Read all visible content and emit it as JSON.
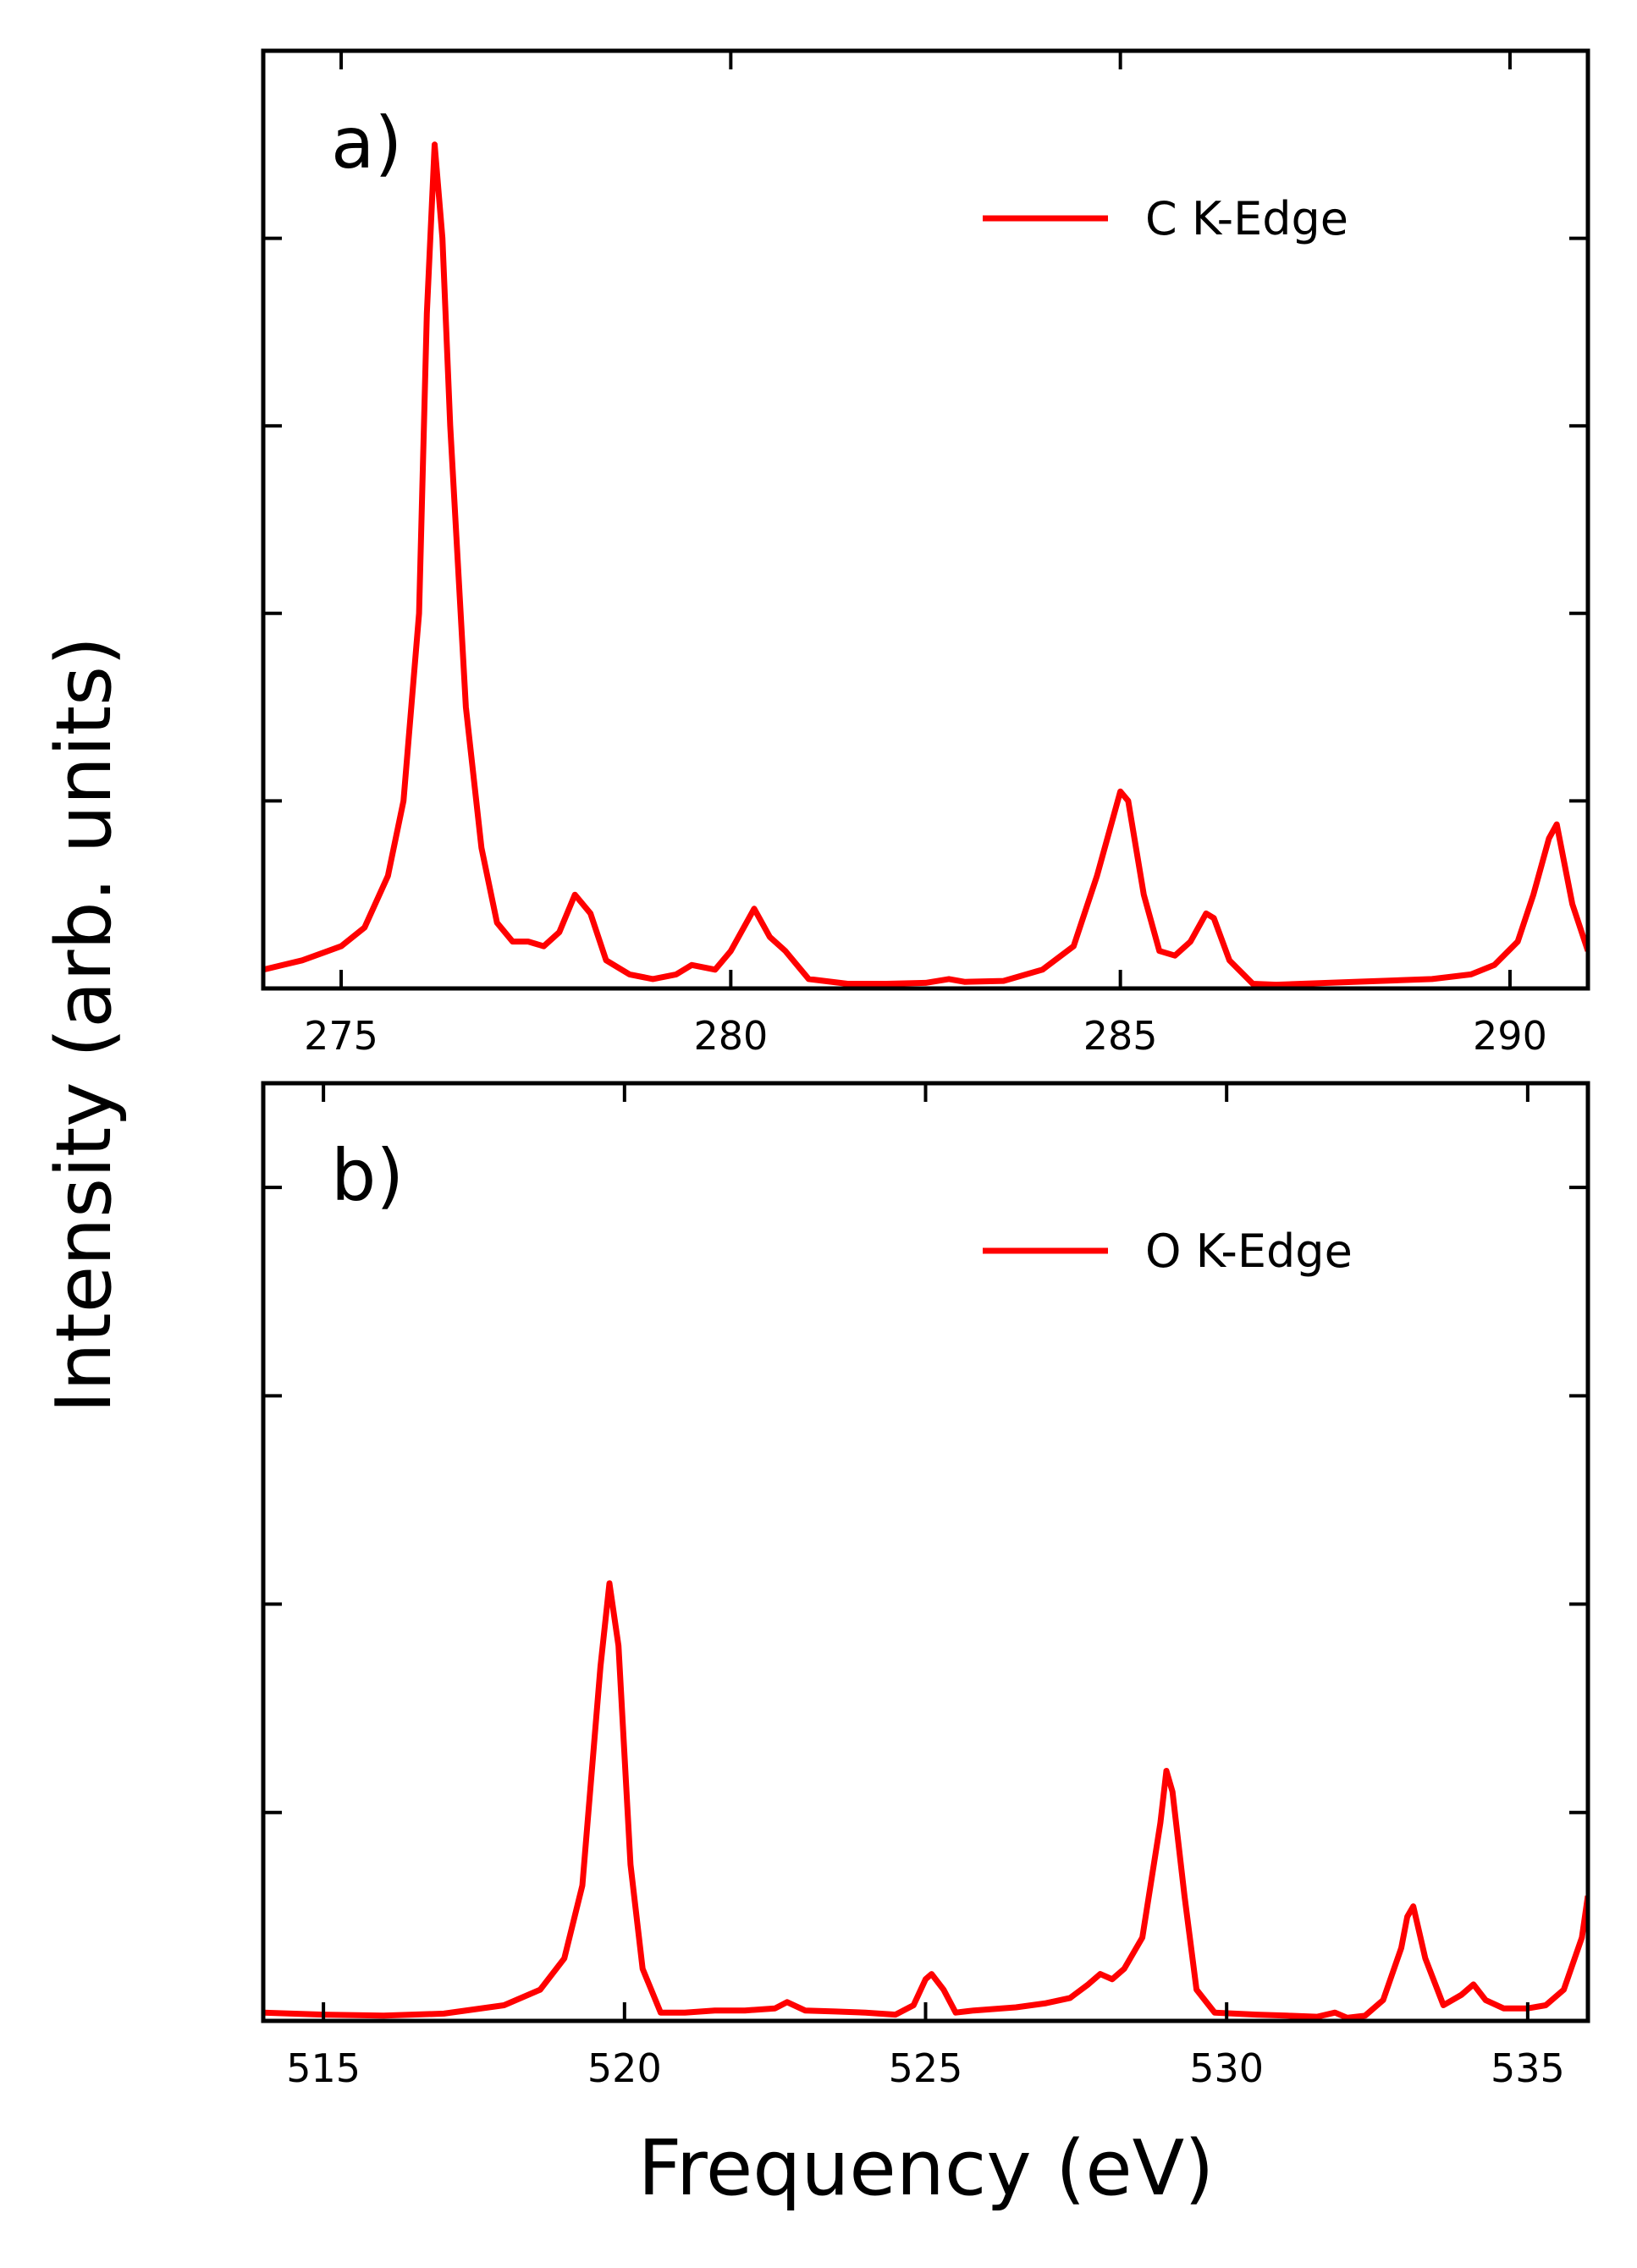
{
  "chart_data": [
    {
      "type": "line",
      "panel_label": "a)",
      "xlim": [
        274,
        291
      ],
      "ylim": [
        0,
        1.0
      ],
      "xticks": [
        275,
        280,
        285,
        290
      ],
      "xtick_labels": [
        "275",
        "280",
        "285",
        "290"
      ],
      "yticks": [
        0.2,
        0.4,
        0.6,
        0.8,
        1.0
      ],
      "ytick_labels_shown": false,
      "grid": false,
      "legend_position": "top-right",
      "series": [
        {
          "name": "C K-Edge",
          "color": "#ff0000",
          "points": [
            [
              274.0,
              0.02
            ],
            [
              274.5,
              0.03
            ],
            [
              275.0,
              0.045
            ],
            [
              275.3,
              0.065
            ],
            [
              275.6,
              0.12
            ],
            [
              275.8,
              0.2
            ],
            [
              276.0,
              0.4
            ],
            [
              276.1,
              0.72
            ],
            [
              276.2,
              0.9
            ],
            [
              276.3,
              0.8
            ],
            [
              276.4,
              0.6
            ],
            [
              276.6,
              0.3
            ],
            [
              276.8,
              0.15
            ],
            [
              277.0,
              0.07
            ],
            [
              277.2,
              0.05
            ],
            [
              277.4,
              0.05
            ],
            [
              277.6,
              0.045
            ],
            [
              277.8,
              0.06
            ],
            [
              278.0,
              0.1
            ],
            [
              278.2,
              0.08
            ],
            [
              278.4,
              0.03
            ],
            [
              278.7,
              0.015
            ],
            [
              279.0,
              0.01
            ],
            [
              279.3,
              0.015
            ],
            [
              279.5,
              0.025
            ],
            [
              279.8,
              0.02
            ],
            [
              280.0,
              0.04
            ],
            [
              280.3,
              0.085
            ],
            [
              280.5,
              0.055
            ],
            [
              280.7,
              0.04
            ],
            [
              281.0,
              0.01
            ],
            [
              281.5,
              0.005
            ],
            [
              282.0,
              0.005
            ],
            [
              282.5,
              0.006
            ],
            [
              282.8,
              0.01
            ],
            [
              283.0,
              0.007
            ],
            [
              283.5,
              0.008
            ],
            [
              284.0,
              0.02
            ],
            [
              284.4,
              0.045
            ],
            [
              284.7,
              0.12
            ],
            [
              285.0,
              0.21
            ],
            [
              285.1,
              0.2
            ],
            [
              285.3,
              0.1
            ],
            [
              285.5,
              0.04
            ],
            [
              285.7,
              0.035
            ],
            [
              285.9,
              0.05
            ],
            [
              286.1,
              0.08
            ],
            [
              286.2,
              0.075
            ],
            [
              286.4,
              0.03
            ],
            [
              286.7,
              0.005
            ],
            [
              287.0,
              0.004
            ],
            [
              288.0,
              0.007
            ],
            [
              289.0,
              0.01
            ],
            [
              289.5,
              0.015
            ],
            [
              289.8,
              0.025
            ],
            [
              290.1,
              0.05
            ],
            [
              290.3,
              0.1
            ],
            [
              290.5,
              0.16
            ],
            [
              290.6,
              0.175
            ],
            [
              290.8,
              0.09
            ],
            [
              291.0,
              0.04
            ]
          ]
        }
      ]
    },
    {
      "type": "line",
      "panel_label": "b)",
      "xlim": [
        514,
        536
      ],
      "ylim": [
        0,
        0.9
      ],
      "xticks": [
        515,
        520,
        525,
        530,
        535
      ],
      "xtick_labels": [
        "515",
        "520",
        "525",
        "530",
        "535"
      ],
      "yticks": [
        0.2,
        0.4,
        0.6,
        0.8
      ],
      "ytick_labels_shown": false,
      "grid": false,
      "legend_position": "top-right",
      "series": [
        {
          "name": "O K-Edge",
          "color": "#ff0000",
          "points": [
            [
              514.0,
              0.008
            ],
            [
              515.0,
              0.006
            ],
            [
              516.0,
              0.005
            ],
            [
              517.0,
              0.007
            ],
            [
              518.0,
              0.015
            ],
            [
              518.6,
              0.03
            ],
            [
              519.0,
              0.06
            ],
            [
              519.3,
              0.13
            ],
            [
              519.6,
              0.34
            ],
            [
              519.75,
              0.42
            ],
            [
              519.9,
              0.36
            ],
            [
              520.1,
              0.15
            ],
            [
              520.3,
              0.05
            ],
            [
              520.6,
              0.008
            ],
            [
              521.0,
              0.008
            ],
            [
              521.5,
              0.01
            ],
            [
              522.0,
              0.01
            ],
            [
              522.5,
              0.012
            ],
            [
              522.7,
              0.018
            ],
            [
              523.0,
              0.01
            ],
            [
              523.5,
              0.009
            ],
            [
              524.0,
              0.008
            ],
            [
              524.5,
              0.006
            ],
            [
              524.8,
              0.015
            ],
            [
              525.0,
              0.04
            ],
            [
              525.1,
              0.045
            ],
            [
              525.3,
              0.03
            ],
            [
              525.5,
              0.008
            ],
            [
              525.8,
              0.01
            ],
            [
              526.5,
              0.013
            ],
            [
              527.0,
              0.017
            ],
            [
              527.4,
              0.022
            ],
            [
              527.7,
              0.035
            ],
            [
              527.9,
              0.045
            ],
            [
              528.1,
              0.04
            ],
            [
              528.3,
              0.05
            ],
            [
              528.6,
              0.08
            ],
            [
              528.9,
              0.19
            ],
            [
              529.0,
              0.24
            ],
            [
              529.1,
              0.22
            ],
            [
              529.3,
              0.12
            ],
            [
              529.5,
              0.03
            ],
            [
              529.8,
              0.008
            ],
            [
              530.5,
              0.006
            ],
            [
              531.0,
              0.005
            ],
            [
              531.5,
              0.004
            ],
            [
              531.8,
              0.008
            ],
            [
              532.0,
              0.003
            ],
            [
              532.3,
              0.005
            ],
            [
              532.6,
              0.02
            ],
            [
              532.9,
              0.07
            ],
            [
              533.0,
              0.1
            ],
            [
              533.1,
              0.11
            ],
            [
              533.3,
              0.06
            ],
            [
              533.6,
              0.015
            ],
            [
              533.9,
              0.025
            ],
            [
              534.1,
              0.035
            ],
            [
              534.3,
              0.02
            ],
            [
              534.6,
              0.012
            ],
            [
              535.0,
              0.012
            ],
            [
              535.3,
              0.015
            ],
            [
              535.6,
              0.03
            ],
            [
              535.9,
              0.08
            ],
            [
              536.0,
              0.12
            ]
          ]
        }
      ]
    }
  ],
  "shared_labels": {
    "xlabel": "Frequency (eV)",
    "ylabel": "Intensity (arb. units)"
  }
}
